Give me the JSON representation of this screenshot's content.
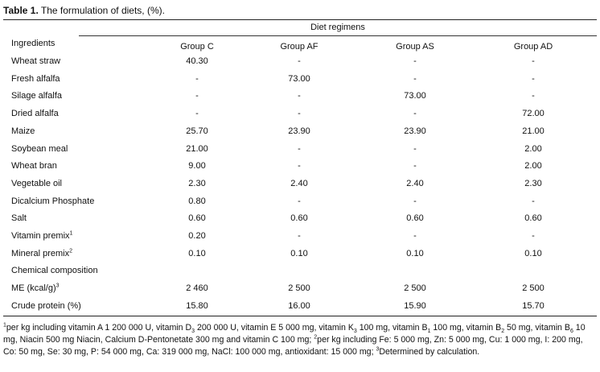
{
  "caption": {
    "label": "Table 1.",
    "text": " The formulation of diets, (%)."
  },
  "diet_regimens_label": "Diet regimens",
  "columns": [
    "Ingredients",
    "Group C",
    "Group AF",
    "Group AS",
    "Group AD"
  ],
  "rows": [
    {
      "name": "Wheat straw",
      "sup": "",
      "values": [
        "40.30",
        "-",
        "-",
        "-"
      ]
    },
    {
      "name": "Fresh alfalfa",
      "sup": "",
      "values": [
        "-",
        "73.00",
        "-",
        "-"
      ]
    },
    {
      "name": "Silage alfalfa",
      "sup": "",
      "values": [
        "-",
        "-",
        "73.00",
        "-"
      ]
    },
    {
      "name": "Dried alfalfa",
      "sup": "",
      "values": [
        "-",
        "-",
        "-",
        "72.00"
      ]
    },
    {
      "name": "Maize",
      "sup": "",
      "values": [
        "25.70",
        "23.90",
        "23.90",
        "21.00"
      ]
    },
    {
      "name": "Soybean meal",
      "sup": "",
      "values": [
        "21.00",
        "-",
        "-",
        "2.00"
      ]
    },
    {
      "name": "Wheat bran",
      "sup": "",
      "values": [
        "9.00",
        "-",
        "-",
        "2.00"
      ]
    },
    {
      "name": "Vegetable oil",
      "sup": "",
      "values": [
        "2.30",
        "2.40",
        "2.40",
        "2.30"
      ]
    },
    {
      "name": "Dicalcium Phosphate",
      "sup": "",
      "values": [
        "0.80",
        "-",
        "-",
        "-"
      ]
    },
    {
      "name": "Salt",
      "sup": "",
      "values": [
        "0.60",
        "0.60",
        "0.60",
        "0.60"
      ]
    },
    {
      "name": "Vitamin premix",
      "sup": "1",
      "values": [
        "0.20",
        "-",
        "-",
        "-"
      ]
    },
    {
      "name": "Mineral premix",
      "sup": "2",
      "values": [
        "0.10",
        "0.10",
        "0.10",
        "0.10"
      ]
    },
    {
      "name": "Chemical composition",
      "sup": "",
      "values": [
        "",
        "",
        "",
        ""
      ]
    },
    {
      "name": "ME (kcal/g)",
      "sup": "3",
      "values": [
        "2 460",
        "2 500",
        "2 500",
        "2 500"
      ]
    },
    {
      "name": "Crude protein (%)",
      "sup": "",
      "values": [
        "15.80",
        "16.00",
        "15.90",
        "15.70"
      ]
    }
  ],
  "footnote": {
    "s1": "1",
    "t1": "per kg including vitamin A 1 200 000 U, vitamin D",
    "sub1": "3",
    "t2": " 200 000 U, vitamin E 5 000 mg, vitamin K",
    "sub2": "3",
    "t3": " 100 mg, vitamin B",
    "sub3": "1",
    "t4": " 100 mg, vitamin B",
    "sub4": "2",
    "t5": " 50 mg, vitamin B",
    "sub5": "6",
    "t6": " 10 mg, Niacin 500 mg Niacin, Calcium D-Pentonetate 300 mg and vitamin C 100 mg; ",
    "s2": "2",
    "t7": "per kg including Fe: 5 000 mg, Zn: 5 000 mg, Cu: 1 000 mg, I: 200 mg, Co: 50 mg, Se: 30 mg, P: 54 000 mg, Ca: 319 000 mg, NaCl: 100 000 mg, antioxidant: 15 000 mg; ",
    "s3": "3",
    "t8": "Determined by calculation."
  }
}
